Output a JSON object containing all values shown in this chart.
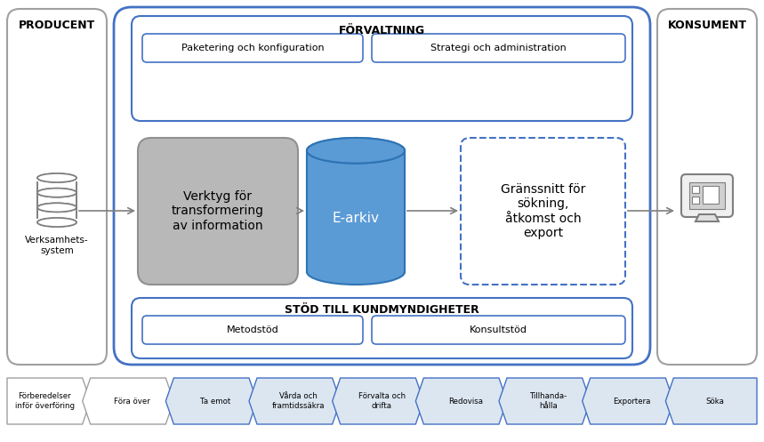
{
  "bg_color": "#ffffff",
  "border_color": "#4472c4",
  "gray_border": "#a0a0a0",
  "light_blue": "#5b9bd5",
  "dark_border": "#2e74b5",
  "gray_fill": "#b8b8b8",
  "cylinder_fill": "#5b9bd5",
  "producent_label": "PRODUCENT",
  "konsument_label": "KONSUMENT",
  "forvaltning_label": "FÖRVALTNING",
  "stod_label": "STÖD TILL KUNDMYNDIGHETER",
  "verktyg_label": "Verktyg för\ntransformering\nav information",
  "earkiv_label": "E-arkiv",
  "granssnitt_label": "Gränssnitt för\nsökning,\nåtkomst och\nexport",
  "paketering_label": "Paketering och konfiguration",
  "strategi_label": "Strategi och administration",
  "metodstod_label": "Metodstöd",
  "konsultstod_label": "Konsultstöd",
  "verksamhet_label": "Verksamhets-\nsystem",
  "arrow_steps": [
    "Förberedelser\ninför överföring",
    "Föra över",
    "Ta emot",
    "Vårda och\nframtidssäkra",
    "Förvalta och\ndrifta",
    "Redovisa",
    "Tillhanda-\nhålla",
    "Exportera",
    "Söka"
  ],
  "step_colors_fill": [
    "#ffffff",
    "#ffffff",
    "#dce6f1",
    "#dce6f1",
    "#dce6f1",
    "#dce6f1",
    "#dce6f1",
    "#dce6f1",
    "#dce6f1"
  ],
  "step_colors_edge": [
    "#a0a0a0",
    "#a0a0a0",
    "#4472c4",
    "#4472c4",
    "#4472c4",
    "#4472c4",
    "#4472c4",
    "#4472c4",
    "#4472c4"
  ]
}
